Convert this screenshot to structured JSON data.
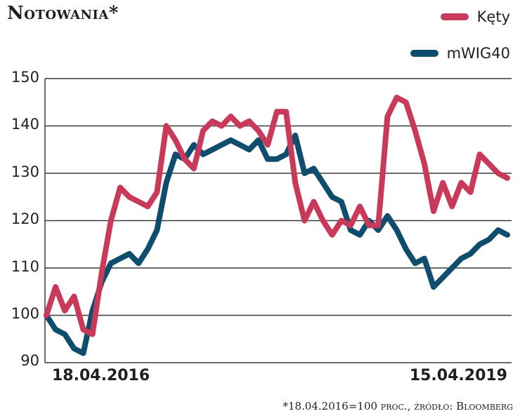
{
  "title": "Notowania*",
  "legend": [
    {
      "label": "Kęty",
      "color": "#c8395a"
    },
    {
      "label": "mWIG40",
      "color": "#0e4d6e"
    }
  ],
  "footnote": "*18.04.2016=100 proc., źródło: Bloomberg",
  "axis": {
    "x_start_label": "18.04.2016",
    "x_end_label": "15.04.2019",
    "y_ticks": [
      "150",
      "140",
      "130",
      "120",
      "110",
      "100",
      "90"
    ]
  },
  "chart_data": {
    "type": "line",
    "title": "Notowania*",
    "xlabel": "",
    "ylabel": "",
    "x_range": [
      "18.04.2016",
      "15.04.2019"
    ],
    "ylim": [
      90,
      150
    ],
    "y_ticks": [
      90,
      100,
      110,
      120,
      130,
      140,
      150
    ],
    "grid": "horizontal",
    "legend_position": "top-right",
    "annotation": "*18.04.2016=100 proc., źródło: Bloomberg",
    "x": [
      0,
      0.02,
      0.04,
      0.06,
      0.08,
      0.1,
      0.12,
      0.14,
      0.16,
      0.18,
      0.2,
      0.22,
      0.24,
      0.26,
      0.28,
      0.3,
      0.32,
      0.34,
      0.36,
      0.38,
      0.4,
      0.42,
      0.44,
      0.46,
      0.48,
      0.5,
      0.52,
      0.54,
      0.56,
      0.58,
      0.6,
      0.62,
      0.64,
      0.66,
      0.68,
      0.7,
      0.72,
      0.74,
      0.76,
      0.78,
      0.8,
      0.82,
      0.84,
      0.86,
      0.88,
      0.9,
      0.92,
      0.94,
      0.96,
      0.98,
      1.0
    ],
    "series": [
      {
        "name": "Kęty",
        "color": "#c8395a",
        "values": [
          100,
          106,
          101,
          104,
          97,
          96,
          109,
          120,
          127,
          125,
          124,
          123,
          126,
          140,
          137,
          133,
          131,
          139,
          141,
          140,
          142,
          140,
          141,
          139,
          136,
          143,
          143,
          128,
          120,
          124,
          120,
          117,
          120,
          119,
          123,
          119,
          119,
          142,
          146,
          145,
          139,
          132,
          122,
          128,
          123,
          128,
          126,
          134,
          132,
          130,
          129
        ]
      },
      {
        "name": "mWIG40",
        "color": "#0e4d6e",
        "values": [
          100,
          97,
          96,
          93,
          92,
          101,
          107,
          111,
          112,
          113,
          111,
          114,
          118,
          128,
          134,
          133,
          136,
          134,
          135,
          136,
          137,
          136,
          135,
          137,
          133,
          133,
          134,
          138,
          130,
          131,
          128,
          125,
          124,
          118,
          117,
          120,
          118,
          121,
          118,
          114,
          111,
          112,
          106,
          108,
          110,
          112,
          113,
          115,
          116,
          118,
          117
        ]
      }
    ]
  }
}
